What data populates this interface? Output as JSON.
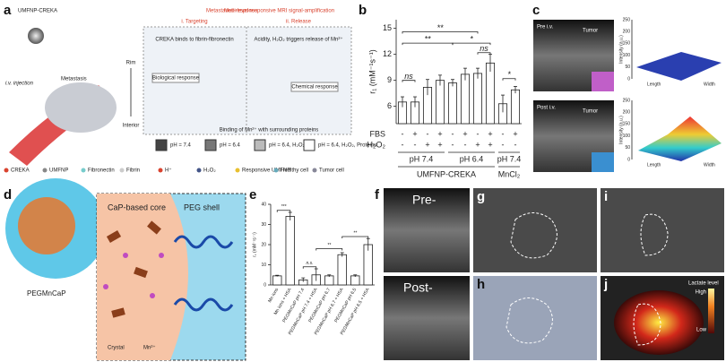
{
  "panel_labels": [
    "a",
    "b",
    "c",
    "d",
    "e",
    "f",
    "g",
    "h",
    "i",
    "j"
  ],
  "panel_a": {
    "title": "UMFNP-CREKA",
    "injection": "i.v. injection",
    "metastasis": "Metastasis",
    "header_left": "Metastases-response",
    "header_right": "Multi-level responsive MRI signal-amplification",
    "step_1": "i. Targeting",
    "step_2": "ii. Release",
    "step_1_text": "CREKA binds to fibrin-fibronectin",
    "step_2_text": "Acidity, H₂O₂ triggers release of Mn²⁺",
    "bio": "Biological response",
    "chem": "Chemical response",
    "rim": "Rim",
    "interior": "Interior",
    "binding": "Binding of Mn²⁺ with surrounding proteins",
    "conditions": [
      "pH = 7.4",
      "pH = 6.4",
      "pH = 6.4, H₂O₂",
      "pH = 6.4, H₂O₂, Proteins"
    ],
    "legend": [
      "CREKA",
      "UMFNP",
      "Fibronectin",
      "Fibrin",
      "H⁺",
      "H₂O₂",
      "Responsive UMFNP",
      "Healthy cell",
      "Tumor cell"
    ]
  },
  "chart_data": [
    {
      "type": "bar",
      "y_label": "r₁ (mM⁻¹s⁻¹)",
      "values": [
        6.5,
        6.5,
        8.2,
        9.0,
        8.7,
        9.7,
        9.8,
        11.0,
        6.3,
        7.9
      ],
      "errors": [
        0.6,
        0.6,
        0.9,
        0.6,
        0.4,
        0.7,
        0.6,
        1.0,
        1.0,
        0.4
      ],
      "ylim": [
        4,
        16
      ],
      "yticks": [
        6,
        9,
        12,
        15
      ],
      "color": "#ffffff",
      "row_labels": [
        "FBS",
        "H₂O₂"
      ],
      "fbs": [
        "-",
        "+",
        "-",
        "+",
        "-",
        "+",
        "-",
        "+",
        "-",
        "+"
      ],
      "h2o2": [
        "-",
        "-",
        "+",
        "+",
        "-",
        "-",
        "+",
        "+",
        "-",
        "-"
      ],
      "groups": [
        "pH 7.4",
        "pH 6.4",
        "pH 7.4"
      ],
      "super_groups": [
        "UMFNP-CREKA",
        "MnCl₂"
      ],
      "annotations": [
        "ns",
        "**",
        "**",
        "*",
        "ns",
        "*"
      ]
    },
    {
      "type": "bar",
      "y_label": "r₁ (mM⁻¹s⁻¹)",
      "categories": [
        "Mn ions",
        "Mn ions + HSA",
        "PEGMnCaP pH 7.4",
        "PEGMnCaP pH 7.4 + HSA",
        "PEGMnCaP pH 6.7",
        "PEGMnCaP pH 6.7 + HSA",
        "PEGMnCaP pH 6.5",
        "PEGMnCaP pH 6.5 + HSA"
      ],
      "values": [
        4.5,
        34,
        2.5,
        5,
        4.5,
        15,
        4.5,
        20
      ],
      "errors": [
        0.3,
        2,
        1,
        3,
        0.5,
        1,
        0.5,
        3
      ],
      "ylim": [
        0,
        40
      ],
      "yticks": [
        0,
        10,
        20,
        30,
        40
      ],
      "color": "#ffffff",
      "annotations": [
        "***",
        "n.s.",
        "**",
        "**"
      ]
    }
  ],
  "panel_c": {
    "pre": "Pre i.v.",
    "post": "Post i.v.",
    "tumor": "Tumor",
    "z_label": "Intensity (a.u.)",
    "x_label": "Width",
    "y_label": "Length",
    "z_ticks": [
      "0",
      "50",
      "100",
      "150",
      "200",
      "250"
    ]
  },
  "panel_d": {
    "core": "CaP-based core",
    "shell": "PEG shell",
    "name": "PEGMnCaP",
    "crystal": "Crystal",
    "ion": "Mn²⁺"
  },
  "panel_f": {
    "pre": "Pre-",
    "post": "Post-"
  },
  "panel_j": {
    "title": "Lactate level",
    "high": "High",
    "low": "Low"
  }
}
